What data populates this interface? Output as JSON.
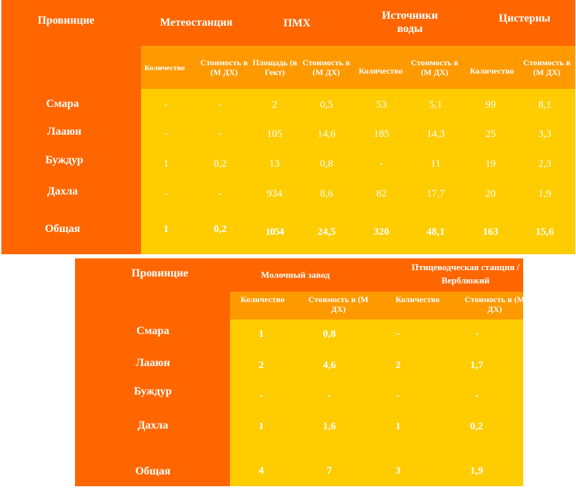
{
  "colors": {
    "orange": "#FF6600",
    "mid_orange": "#FF9900",
    "yellow": "#FFCC00",
    "text": "#FFFFFF"
  },
  "table1": {
    "headers": {
      "province": "Провинцие",
      "weather": "Метеостанция",
      "pmh": "ПМХ",
      "water": "Источники воды",
      "cisterns": "Цистерны"
    },
    "subheaders": [
      "Количество",
      "Стоимость в (М ДХ)",
      "Площадь (в Гект)",
      "Стоимость в (М ДХ)",
      "Количество",
      "Стоимость в (М ДХ)",
      "Количество",
      "Стоимость в (М ДХ)"
    ],
    "rows": [
      {
        "name": "Смара",
        "values": [
          "-",
          "-",
          "2",
          "0,5",
          "53",
          "5,1",
          "99",
          "8,1"
        ]
      },
      {
        "name": "Лааюн",
        "values": [
          "-",
          "-",
          "105",
          "14,6",
          "185",
          "14,3",
          "25",
          "3,3"
        ]
      },
      {
        "name": "Буждур",
        "values": [
          "1",
          "0,2",
          "13",
          "0,8",
          "-",
          "11",
          "19",
          "2,3"
        ]
      },
      {
        "name": "Дахла",
        "values": [
          "-",
          "-",
          "934",
          "8,6",
          "82",
          "17,7",
          "20",
          "1,9"
        ]
      },
      {
        "name": "Общая",
        "values": [
          "1",
          "0,2",
          "1054",
          "24,5",
          "320",
          "48,1",
          "163",
          "15,6"
        ]
      }
    ]
  },
  "table2": {
    "headers": {
      "province": "Провинцие",
      "dairy": "Молочный завод",
      "poultry": "Птицеводческая станция / Верблюжий"
    },
    "subheaders": [
      "Количество",
      "Стоимость в (М ДХ)",
      "Количество",
      "Стоимость в (М ДХ)"
    ],
    "rows": [
      {
        "name": "Смара",
        "values": [
          "1",
          "0,8",
          "-",
          "-"
        ]
      },
      {
        "name": "Лааюн",
        "values": [
          "2",
          "4,6",
          "2",
          "1,7"
        ]
      },
      {
        "name": "Буждур",
        "values": [
          "-",
          "-",
          "-",
          "-"
        ]
      },
      {
        "name": "Дахла",
        "values": [
          "1",
          "1,6",
          "1",
          "0,2"
        ]
      },
      {
        "name": "Общая",
        "values": [
          "4",
          "7",
          "3",
          "1,9"
        ]
      }
    ]
  }
}
